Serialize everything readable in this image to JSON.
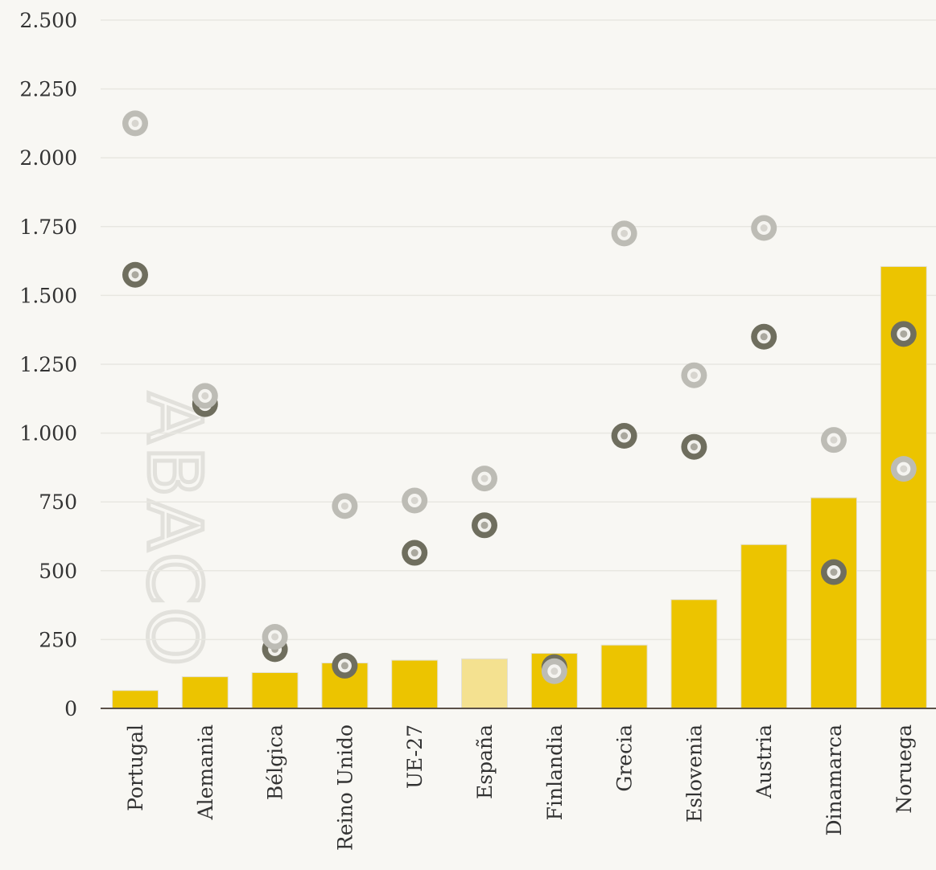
{
  "chart_data": {
    "type": "bar",
    "categories": [
      "Portugal",
      "Alemania",
      "Bélgica",
      "Reino Unido",
      "UE-27",
      "España",
      "Finlandia",
      "Grecia",
      "Eslovenia",
      "Austria",
      "Dinamarca",
      "Noruega"
    ],
    "series": [
      {
        "type": "bar",
        "values": [
          65,
          115,
          130,
          165,
          175,
          180,
          200,
          230,
          395,
          595,
          765,
          1605
        ]
      },
      {
        "type": "scatter",
        "values": [
          1575,
          1105,
          215,
          155,
          565,
          665,
          150,
          990,
          950,
          1350,
          495,
          1360
        ]
      },
      {
        "type": "scatter",
        "values": [
          2125,
          1135,
          260,
          735,
          755,
          835,
          135,
          1725,
          1210,
          1745,
          975,
          870
        ]
      }
    ],
    "highlight_category": "España",
    "ylim": [
      0,
      2500
    ],
    "yticks": [
      0,
      250,
      500,
      750,
      1000,
      1250,
      1500,
      1750,
      2000,
      2250,
      2500
    ],
    "ytick_labels": [
      "0",
      "250",
      "500",
      "750",
      "1.000",
      "1.250",
      "1.500",
      "1.750",
      "2.000",
      "2.250",
      "2.500"
    ],
    "grid": true,
    "watermark": "ABACO",
    "colors": {
      "bar": "#ecc400",
      "bar_highlight": "#f4e190",
      "marker_dark": "#6f6e5e",
      "marker_light": "#bdbcb5",
      "grid": "#e8e7e1",
      "axis": "#5b5048",
      "background": "#f8f7f3"
    }
  }
}
